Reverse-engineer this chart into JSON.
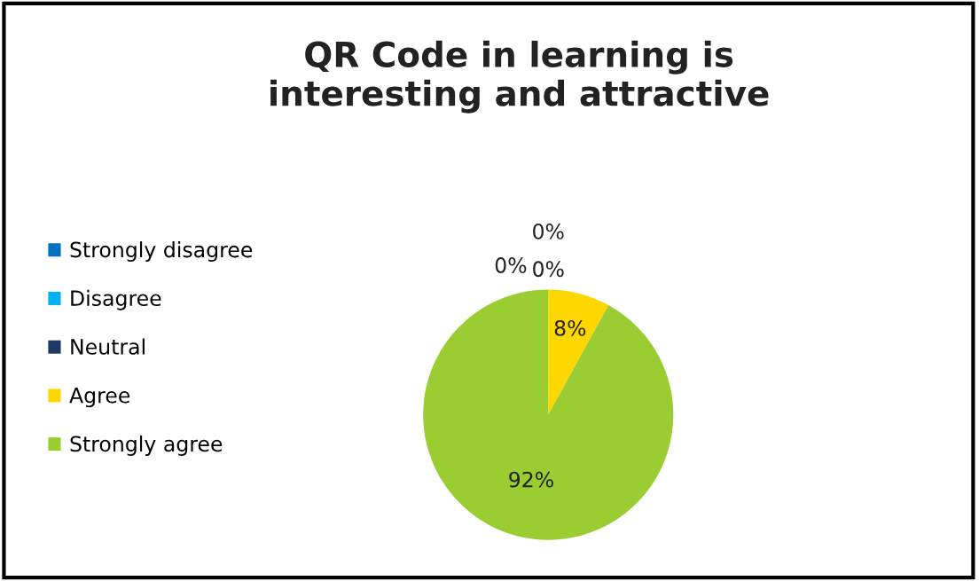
{
  "chart_data": {
    "type": "pie",
    "title": "QR Code in learning is\ninteresting and attractive",
    "categories": [
      "Strongly disagree",
      "Disagree",
      "Neutral",
      "Agree",
      "Strongly agree"
    ],
    "values": [
      0,
      0,
      0,
      8,
      92
    ],
    "colors": [
      "#0070c0",
      "#00b0f0",
      "#1f3864",
      "#ffd700",
      "#9acd32"
    ],
    "value_labels": [
      "0%",
      "0%",
      "0%",
      "8%",
      "92%"
    ],
    "legend": "left"
  }
}
